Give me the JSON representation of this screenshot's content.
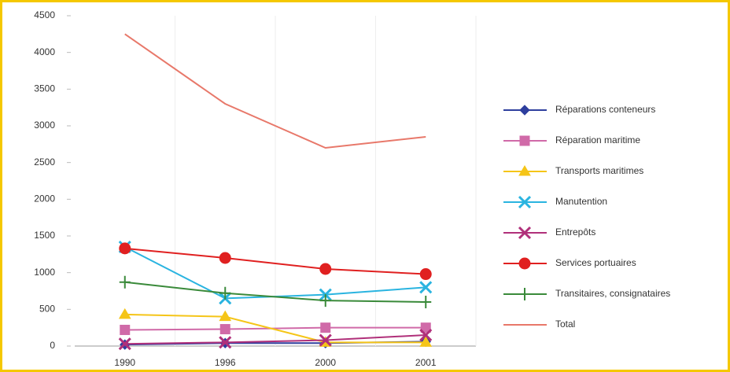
{
  "chart_data": {
    "type": "line",
    "categories": [
      "1990",
      "1996",
      "2000",
      "2001"
    ],
    "ylim": [
      0,
      4500
    ],
    "yticks": [
      0,
      500,
      1000,
      1500,
      2000,
      2500,
      3000,
      3500,
      4000,
      4500
    ],
    "series": [
      {
        "name": "Réparations conteneurs",
        "color": "#2e3f9e",
        "marker": "diamond",
        "values": [
          20,
          40,
          40,
          60
        ]
      },
      {
        "name": "Réparation maritime",
        "color": "#d06aa8",
        "marker": "square",
        "values": [
          220,
          230,
          250,
          250
        ]
      },
      {
        "name": "Transports maritimes",
        "color": "#f5c518",
        "marker": "triangle",
        "values": [
          430,
          400,
          50,
          50
        ]
      },
      {
        "name": "Manutention",
        "color": "#2ab4e0",
        "marker": "x",
        "values": [
          1350,
          650,
          700,
          800
        ]
      },
      {
        "name": "Entrepôts",
        "color": "#b0307a",
        "marker": "x",
        "values": [
          30,
          50,
          80,
          150
        ]
      },
      {
        "name": "Services portuaires",
        "color": "#e02020",
        "marker": "circle",
        "values": [
          1330,
          1200,
          1050,
          980
        ]
      },
      {
        "name": "Transitaires, consignataires",
        "color": "#3a8a3a",
        "marker": "plus",
        "values": [
          870,
          720,
          620,
          600
        ]
      },
      {
        "name": "Total",
        "color": "#e8786a",
        "marker": "none",
        "values": [
          4250,
          3300,
          2700,
          2850
        ]
      }
    ]
  }
}
